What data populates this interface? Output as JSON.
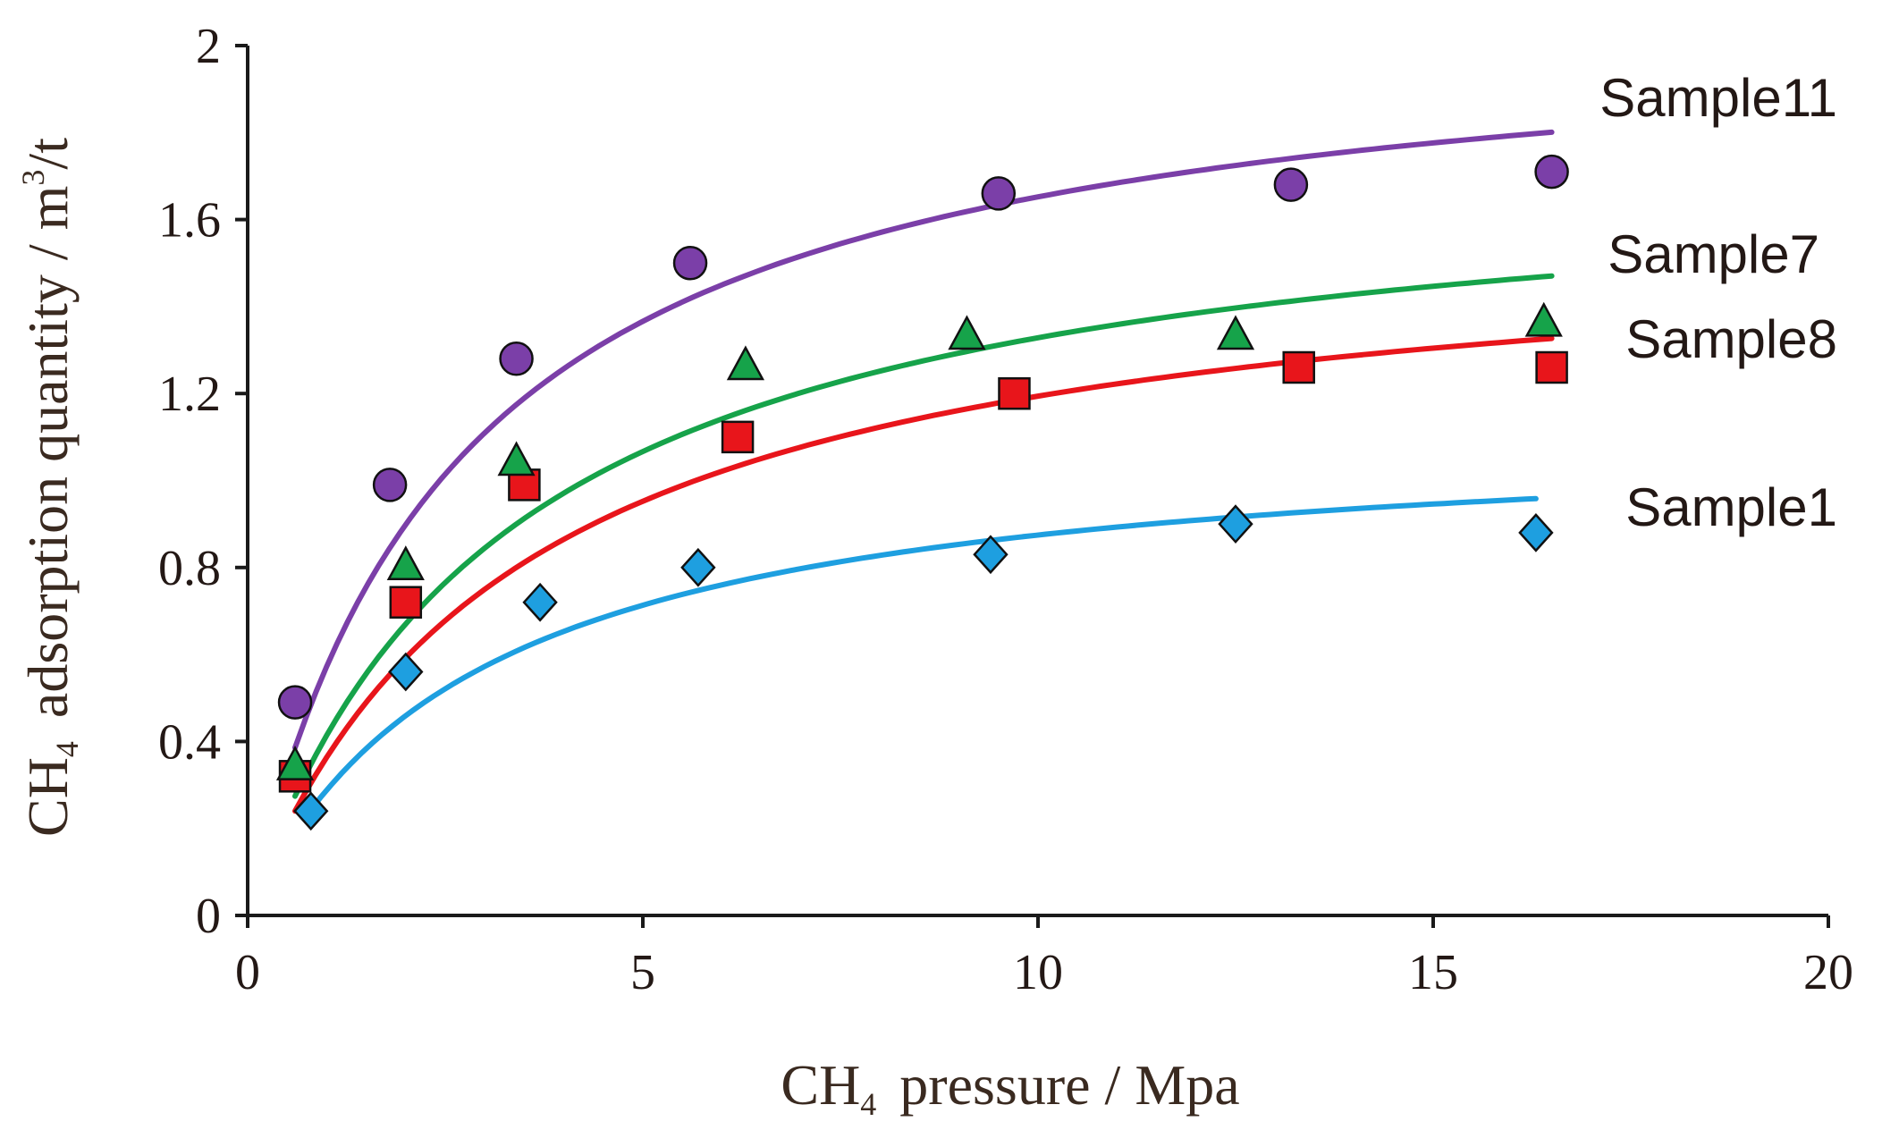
{
  "chart_data": {
    "type": "scatter",
    "xlabel": {
      "main": "CH",
      "sub": "4",
      "rest": "pressure / Mpa"
    },
    "ylabel": {
      "main": "CH",
      "sub": "4",
      "rest": "adsorption quantity / m",
      "sup": "3",
      "tail": "/t"
    },
    "xlim": [
      0,
      20
    ],
    "ylim": [
      0,
      2
    ],
    "xticks": [
      0,
      5,
      10,
      15,
      20
    ],
    "xtick_labels": [
      "0",
      "5",
      "10",
      "15",
      "20"
    ],
    "yticks": [
      0,
      0.4,
      0.8,
      1.2,
      1.6,
      2
    ],
    "ytick_labels": [
      "0",
      "0.4",
      "0.8",
      "1.2",
      "1.6",
      "2"
    ],
    "grid": false,
    "series": [
      {
        "name": "Sample11",
        "marker": "circle",
        "color": "#7b3fa8",
        "points": [
          [
            0.6,
            0.49
          ],
          [
            1.8,
            0.99
          ],
          [
            3.4,
            1.28
          ],
          [
            5.6,
            1.5
          ],
          [
            9.5,
            1.66
          ],
          [
            13.2,
            1.68
          ],
          [
            16.5,
            1.71
          ]
        ],
        "fit": {
          "model": "langmuir",
          "VL": 2.09,
          "PL": 2.65,
          "x_range": [
            0.6,
            16.5
          ]
        }
      },
      {
        "name": "Sample7",
        "marker": "triangle",
        "color": "#16a34a",
        "points": [
          [
            0.6,
            0.34
          ],
          [
            2.0,
            0.8
          ],
          [
            3.4,
            1.04
          ],
          [
            6.3,
            1.26
          ],
          [
            9.1,
            1.33
          ],
          [
            12.5,
            1.33
          ],
          [
            16.4,
            1.36
          ]
        ],
        "fit": {
          "model": "langmuir",
          "VL": 1.76,
          "PL": 3.25,
          "x_range": [
            0.6,
            16.5
          ]
        }
      },
      {
        "name": "Sample8",
        "marker": "square",
        "color": "#e8151b",
        "points": [
          [
            0.6,
            0.32
          ],
          [
            2.0,
            0.72
          ],
          [
            3.5,
            0.99
          ],
          [
            6.2,
            1.1
          ],
          [
            9.7,
            1.2
          ],
          [
            13.3,
            1.26
          ],
          [
            16.5,
            1.26
          ]
        ],
        "fit": {
          "model": "langmuir",
          "VL": 1.6,
          "PL": 3.4,
          "x_range": [
            0.6,
            16.5
          ]
        }
      },
      {
        "name": "Sample1",
        "marker": "diamond",
        "color": "#1e9fe0",
        "points": [
          [
            0.8,
            0.24
          ],
          [
            2.0,
            0.56
          ],
          [
            3.7,
            0.72
          ],
          [
            5.7,
            0.8
          ],
          [
            9.4,
            0.83
          ],
          [
            12.5,
            0.9
          ],
          [
            16.3,
            0.88
          ]
        ],
        "fit": {
          "model": "langmuir",
          "VL": 1.13,
          "PL": 2.92,
          "x_range": [
            0.8,
            16.3
          ]
        }
      }
    ]
  }
}
